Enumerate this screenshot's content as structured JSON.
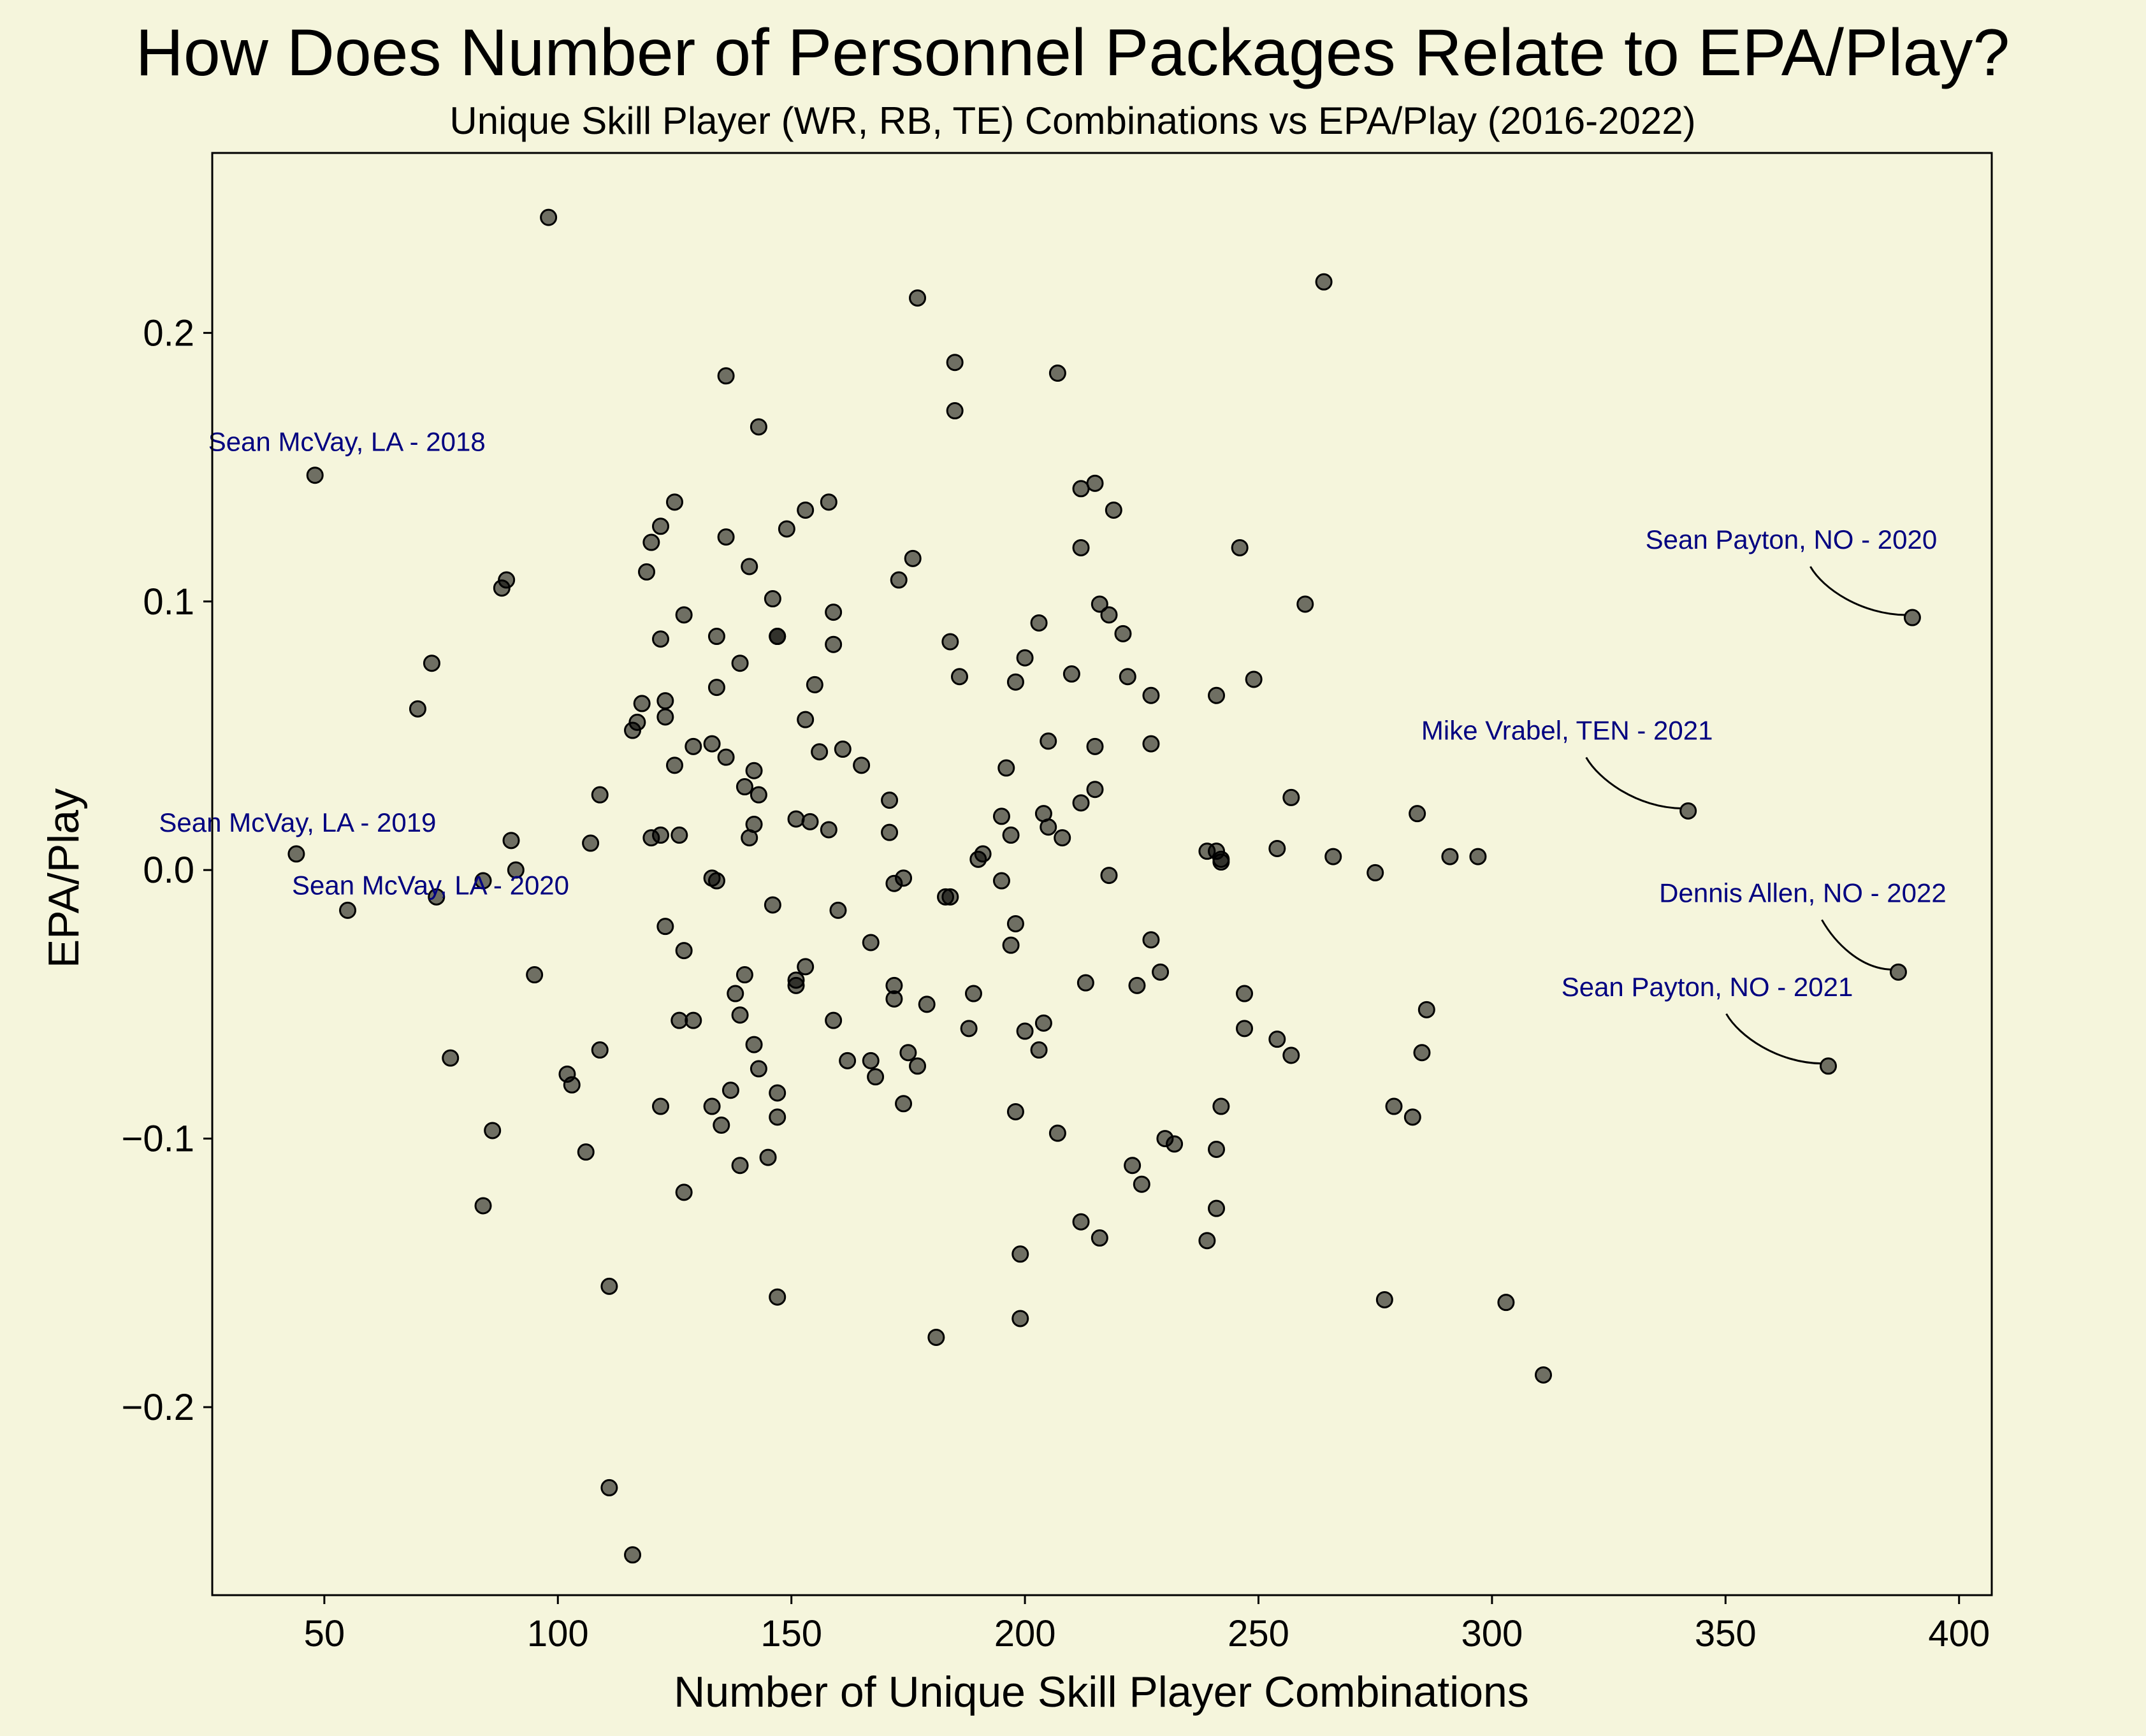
{
  "chart_data": {
    "type": "scatter",
    "title": "How Does Number of Personnel Packages Relate to EPA/Play?",
    "subtitle": "Unique Skill Player (WR, RB, TE) Combinations vs EPA/Play (2016-2022)",
    "xlabel": "Number of Unique Skill Player Combinations",
    "ylabel": "EPA/Play",
    "xlim": [
      26,
      407
    ],
    "ylim": [
      -0.27,
      0.267
    ],
    "xticks": [
      50,
      100,
      150,
      200,
      250,
      300,
      350,
      400
    ],
    "xtick_labels": [
      "50",
      "100",
      "150",
      "200",
      "250",
      "300",
      "350",
      "400"
    ],
    "yticks": [
      -0.2,
      -0.1,
      0.0,
      0.1,
      0.2
    ],
    "ytick_labels": [
      "−0.2",
      "−0.1",
      "0.0",
      "0.1",
      "0.2"
    ],
    "grid": false,
    "point_color": "#000000",
    "annotation_color": "#000080",
    "annotations": [
      {
        "text": "Sean McVay, LA - 2018",
        "x": 48,
        "y": 0.147
      },
      {
        "text": "Sean McVay, LA - 2019",
        "x": 44,
        "y": 0.006
      },
      {
        "text": "Sean McVay, LA - 2020",
        "x": 55,
        "y": -0.015
      },
      {
        "text": "Sean Payton, NO - 2020",
        "x": 390,
        "y": 0.094
      },
      {
        "text": "Mike Vrabel, TEN - 2021",
        "x": 342,
        "y": 0.022
      },
      {
        "text": "Dennis Allen, NO - 2022",
        "x": 387,
        "y": -0.038
      },
      {
        "text": "Sean Payton, NO - 2021",
        "x": 372,
        "y": -0.073
      }
    ],
    "points": [
      [
        98,
        0.243
      ],
      [
        264,
        0.219
      ],
      [
        177,
        0.213
      ],
      [
        185,
        0.189
      ],
      [
        207,
        0.185
      ],
      [
        136,
        0.184
      ],
      [
        185,
        0.171
      ],
      [
        143,
        0.165
      ],
      [
        48,
        0.147
      ],
      [
        215,
        0.144
      ],
      [
        212,
        0.142
      ],
      [
        158,
        0.137
      ],
      [
        125,
        0.137
      ],
      [
        153,
        0.134
      ],
      [
        219,
        0.134
      ],
      [
        149,
        0.127
      ],
      [
        122,
        0.128
      ],
      [
        136,
        0.124
      ],
      [
        120,
        0.122
      ],
      [
        212,
        0.12
      ],
      [
        246,
        0.12
      ],
      [
        176,
        0.116
      ],
      [
        141,
        0.113
      ],
      [
        119,
        0.111
      ],
      [
        173,
        0.108
      ],
      [
        89,
        0.108
      ],
      [
        88,
        0.105
      ],
      [
        146,
        0.101
      ],
      [
        216,
        0.099
      ],
      [
        260,
        0.099
      ],
      [
        127,
        0.095
      ],
      [
        159,
        0.096
      ],
      [
        218,
        0.095
      ],
      [
        390,
        0.094
      ],
      [
        203,
        0.092
      ],
      [
        221,
        0.088
      ],
      [
        134,
        0.087
      ],
      [
        147,
        0.087
      ],
      [
        147,
        0.087
      ],
      [
        122,
        0.086
      ],
      [
        184,
        0.085
      ],
      [
        159,
        0.084
      ],
      [
        200,
        0.079
      ],
      [
        73,
        0.077
      ],
      [
        139,
        0.077
      ],
      [
        210,
        0.073
      ],
      [
        186,
        0.072
      ],
      [
        222,
        0.072
      ],
      [
        249,
        0.071
      ],
      [
        198,
        0.07
      ],
      [
        155,
        0.069
      ],
      [
        134,
        0.068
      ],
      [
        227,
        0.065
      ],
      [
        241,
        0.065
      ],
      [
        123,
        0.063
      ],
      [
        118,
        0.062
      ],
      [
        70,
        0.06
      ],
      [
        123,
        0.057
      ],
      [
        117,
        0.055
      ],
      [
        153,
        0.056
      ],
      [
        116,
        0.052
      ],
      [
        205,
        0.048
      ],
      [
        227,
        0.047
      ],
      [
        129,
        0.046
      ],
      [
        133,
        0.047
      ],
      [
        215,
        0.046
      ],
      [
        161,
        0.045
      ],
      [
        156,
        0.044
      ],
      [
        136,
        0.042
      ],
      [
        165,
        0.039
      ],
      [
        125,
        0.039
      ],
      [
        196,
        0.038
      ],
      [
        142,
        0.037
      ],
      [
        140,
        0.031
      ],
      [
        215,
        0.03
      ],
      [
        143,
        0.028
      ],
      [
        109,
        0.028
      ],
      [
        257,
        0.027
      ],
      [
        171,
        0.026
      ],
      [
        212,
        0.025
      ],
      [
        204,
        0.021
      ],
      [
        284,
        0.021
      ],
      [
        342,
        0.022
      ],
      [
        195,
        0.02
      ],
      [
        151,
        0.019
      ],
      [
        154,
        0.018
      ],
      [
        142,
        0.017
      ],
      [
        205,
        0.016
      ],
      [
        158,
        0.015
      ],
      [
        171,
        0.014
      ],
      [
        122,
        0.013
      ],
      [
        197,
        0.013
      ],
      [
        126,
        0.013
      ],
      [
        208,
        0.012
      ],
      [
        120,
        0.012
      ],
      [
        141,
        0.012
      ],
      [
        90,
        0.011
      ],
      [
        107,
        0.01
      ],
      [
        254,
        0.008
      ],
      [
        239,
        0.007
      ],
      [
        241,
        0.007
      ],
      [
        191,
        0.006
      ],
      [
        44,
        0.006
      ],
      [
        266,
        0.005
      ],
      [
        291,
        0.005
      ],
      [
        297,
        0.005
      ],
      [
        242,
        0.004
      ],
      [
        242,
        0.003
      ],
      [
        190,
        0.004
      ],
      [
        91,
        0.0
      ],
      [
        275,
        -0.001
      ],
      [
        218,
        -0.002
      ],
      [
        174,
        -0.003
      ],
      [
        133,
        -0.003
      ],
      [
        84,
        -0.004
      ],
      [
        134,
        -0.004
      ],
      [
        195,
        -0.004
      ],
      [
        172,
        -0.005
      ],
      [
        183,
        -0.01
      ],
      [
        184,
        -0.01
      ],
      [
        74,
        -0.01
      ],
      [
        146,
        -0.013
      ],
      [
        55,
        -0.015
      ],
      [
        160,
        -0.015
      ],
      [
        198,
        -0.02
      ],
      [
        123,
        -0.021
      ],
      [
        227,
        -0.026
      ],
      [
        167,
        -0.027
      ],
      [
        197,
        -0.028
      ],
      [
        127,
        -0.03
      ],
      [
        153,
        -0.036
      ],
      [
        229,
        -0.038
      ],
      [
        95,
        -0.039
      ],
      [
        140,
        -0.039
      ],
      [
        387,
        -0.038
      ],
      [
        151,
        -0.041
      ],
      [
        213,
        -0.042
      ],
      [
        151,
        -0.043
      ],
      [
        172,
        -0.043
      ],
      [
        224,
        -0.043
      ],
      [
        138,
        -0.046
      ],
      [
        189,
        -0.046
      ],
      [
        247,
        -0.046
      ],
      [
        172,
        -0.048
      ],
      [
        179,
        -0.05
      ],
      [
        286,
        -0.052
      ],
      [
        139,
        -0.054
      ],
      [
        159,
        -0.056
      ],
      [
        126,
        -0.056
      ],
      [
        129,
        -0.056
      ],
      [
        204,
        -0.057
      ],
      [
        188,
        -0.059
      ],
      [
        247,
        -0.059
      ],
      [
        200,
        -0.06
      ],
      [
        254,
        -0.063
      ],
      [
        142,
        -0.065
      ],
      [
        203,
        -0.067
      ],
      [
        109,
        -0.067
      ],
      [
        285,
        -0.068
      ],
      [
        175,
        -0.068
      ],
      [
        257,
        -0.069
      ],
      [
        77,
        -0.07
      ],
      [
        162,
        -0.071
      ],
      [
        167,
        -0.071
      ],
      [
        143,
        -0.074
      ],
      [
        177,
        -0.073
      ],
      [
        372,
        -0.073
      ],
      [
        102,
        -0.076
      ],
      [
        168,
        -0.077
      ],
      [
        103,
        -0.08
      ],
      [
        137,
        -0.082
      ],
      [
        147,
        -0.083
      ],
      [
        174,
        -0.087
      ],
      [
        133,
        -0.088
      ],
      [
        122,
        -0.088
      ],
      [
        242,
        -0.088
      ],
      [
        279,
        -0.088
      ],
      [
        198,
        -0.09
      ],
      [
        283,
        -0.092
      ],
      [
        147,
        -0.092
      ],
      [
        135,
        -0.095
      ],
      [
        86,
        -0.097
      ],
      [
        207,
        -0.098
      ],
      [
        230,
        -0.1
      ],
      [
        232,
        -0.102
      ],
      [
        241,
        -0.104
      ],
      [
        106,
        -0.105
      ],
      [
        145,
        -0.107
      ],
      [
        223,
        -0.11
      ],
      [
        139,
        -0.11
      ],
      [
        225,
        -0.117
      ],
      [
        127,
        -0.12
      ],
      [
        84,
        -0.125
      ],
      [
        241,
        -0.126
      ],
      [
        212,
        -0.131
      ],
      [
        216,
        -0.137
      ],
      [
        239,
        -0.138
      ],
      [
        199,
        -0.143
      ],
      [
        111,
        -0.155
      ],
      [
        147,
        -0.159
      ],
      [
        277,
        -0.16
      ],
      [
        303,
        -0.161
      ],
      [
        199,
        -0.167
      ],
      [
        181,
        -0.174
      ],
      [
        311,
        -0.188
      ],
      [
        111,
        -0.23
      ],
      [
        116,
        -0.255
      ]
    ]
  }
}
